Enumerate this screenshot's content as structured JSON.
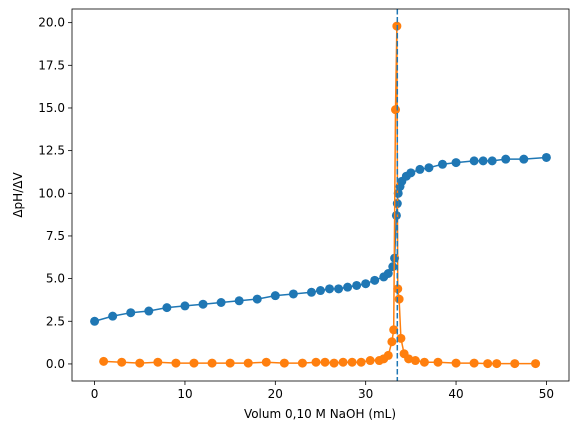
{
  "chart_data": {
    "type": "line",
    "xlabel": "Volum 0,10 M NaOH (mL)",
    "ylabel": "ΔpH/ΔV",
    "xlim": [
      -2.5,
      52.5
    ],
    "ylim": [
      -1.0,
      20.8
    ],
    "xticks": [
      0,
      10,
      20,
      30,
      40,
      50
    ],
    "yticks": [
      {
        "value": 0,
        "label": "0.0"
      },
      {
        "value": 2.5,
        "label": "2.5"
      },
      {
        "value": 5,
        "label": "5.0"
      },
      {
        "value": 7.5,
        "label": "7.5"
      },
      {
        "value": 10,
        "label": "10.0"
      },
      {
        "value": 12.5,
        "label": "12.5"
      },
      {
        "value": 15,
        "label": "15.0"
      },
      {
        "value": 17.5,
        "label": "17.5"
      },
      {
        "value": 20,
        "label": "20.0"
      }
    ],
    "vline": 33.5,
    "vline_color": "#1f77b4",
    "series": [
      {
        "color": "#1f77b4",
        "x": [
          0,
          2,
          4,
          6,
          8,
          10,
          12,
          14,
          16,
          18,
          20,
          22,
          24,
          25,
          26,
          27,
          28,
          29,
          30,
          31,
          32,
          32.5,
          33,
          33.2,
          33.4,
          33.5,
          33.6,
          33.8,
          34,
          34.5,
          35,
          36,
          37,
          38.5,
          40,
          42,
          43,
          44,
          45.5,
          47.5,
          50
        ],
        "values": [
          2.5,
          2.8,
          3.0,
          3.1,
          3.3,
          3.4,
          3.5,
          3.6,
          3.7,
          3.8,
          4.0,
          4.1,
          4.2,
          4.3,
          4.4,
          4.4,
          4.5,
          4.6,
          4.7,
          4.9,
          5.1,
          5.3,
          5.7,
          6.2,
          8.7,
          9.4,
          10.0,
          10.4,
          10.7,
          11.0,
          11.2,
          11.4,
          11.5,
          11.7,
          11.8,
          11.9,
          11.9,
          11.9,
          12.0,
          12.0,
          12.1
        ]
      },
      {
        "color": "#ff7f0e",
        "x": [
          1,
          3,
          5,
          7,
          9,
          11,
          13,
          15,
          17,
          19,
          21,
          23,
          24.5,
          25.5,
          26.5,
          27.5,
          28.5,
          29.5,
          30.5,
          31.5,
          32,
          32.5,
          32.9,
          33.1,
          33.3,
          33.45,
          33.55,
          33.7,
          33.9,
          34.25,
          34.75,
          35.5,
          36.5,
          38,
          40,
          42,
          43.5,
          44.5,
          46.5,
          48.8
        ],
        "values": [
          0.15,
          0.1,
          0.05,
          0.1,
          0.05,
          0.05,
          0.05,
          0.05,
          0.05,
          0.1,
          0.05,
          0.05,
          0.1,
          0.1,
          0.05,
          0.1,
          0.1,
          0.1,
          0.2,
          0.2,
          0.3,
          0.5,
          1.3,
          2.0,
          14.9,
          19.8,
          4.4,
          3.8,
          1.5,
          0.6,
          0.3,
          0.2,
          0.1,
          0.1,
          0.05,
          0.05,
          0.02,
          0.02,
          0.02,
          0.02
        ]
      }
    ]
  }
}
